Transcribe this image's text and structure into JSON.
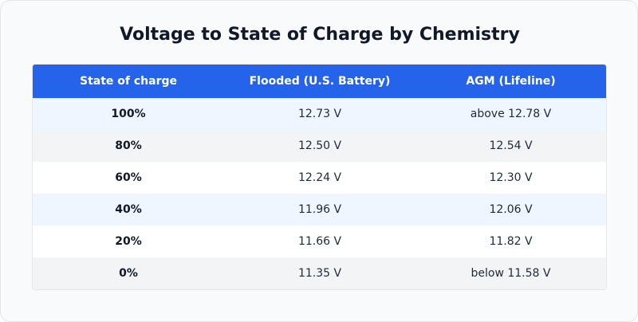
{
  "title": "Voltage to State of Charge by Chemistry",
  "table": {
    "headers": [
      "State of charge",
      "Flooded (U.S. Battery)",
      "AGM (Lifeline)"
    ],
    "rows": [
      [
        "100%",
        "12.73 V",
        "above 12.78 V"
      ],
      [
        "80%",
        "12.50 V",
        "12.54 V"
      ],
      [
        "60%",
        "12.24 V",
        "12.30 V"
      ],
      [
        "40%",
        "11.96 V",
        "12.06 V"
      ],
      [
        "20%",
        "11.66 V",
        "11.82 V"
      ],
      [
        "0%",
        "11.35 V",
        "below 11.58 V"
      ]
    ]
  },
  "colors": {
    "header_bg": "#2563eb",
    "row_blue": "#eff6ff",
    "row_gray": "#f3f4f6",
    "row_white": "#ffffff"
  }
}
